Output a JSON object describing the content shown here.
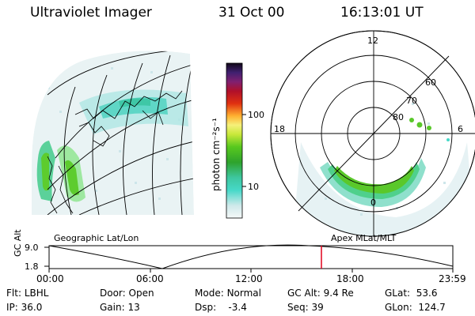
{
  "header": {
    "title": "Ultraviolet Imager",
    "date": "31 Oct 00",
    "time": "16:13:01 UT"
  },
  "colorbar": {
    "label": "photon cm⁻²s⁻¹",
    "scale": "log",
    "ticks": [
      "100",
      "10"
    ]
  },
  "polar": {
    "clock_labels": [
      "12",
      "18",
      "6",
      "0"
    ],
    "lat_labels": [
      "80",
      "70",
      "60"
    ]
  },
  "map_labels": {
    "left": "Geographic Lat/Lon",
    "right": "Apex MLat/MLT"
  },
  "timeline": {
    "ylabel": "GC Alt",
    "y_ticks": [
      "9.0",
      "1.8"
    ],
    "x_ticks": [
      "00:00",
      "06:00",
      "12:00",
      "18:00",
      "23:59"
    ],
    "marker_time": "16:13",
    "marker_color": "#e0001a"
  },
  "params": {
    "flt_label": "Flt:",
    "flt_value": "LBHL",
    "ip_label": "IP:",
    "ip_value": "36.0",
    "door_label": "Door:",
    "door_value": "Open",
    "gain_label": "Gain:",
    "gain_value": "13",
    "mode_label": "Mode:",
    "mode_value": "Normal",
    "dsp_label": "Dsp:",
    "dsp_value": "-3.4",
    "gcalt_label": "GC Alt:",
    "gcalt_value": "9.4 Re",
    "seq_label": "Seq:",
    "seq_value": "39",
    "glat_label": "GLat:",
    "glat_value": "53.6",
    "glon_label": "GLon:",
    "glon_value": "124.7"
  }
}
